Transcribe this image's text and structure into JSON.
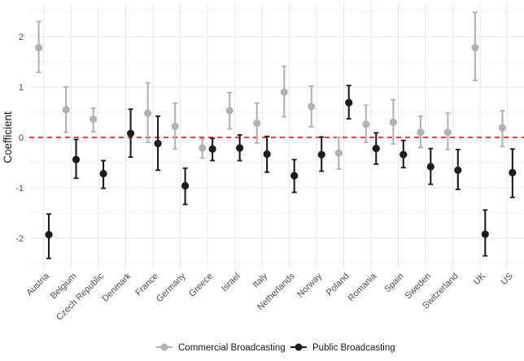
{
  "chart_data": {
    "type": "scatter",
    "subtype": "pointrange-coefficient-plot",
    "title": "",
    "xlabel": "",
    "ylabel": "Coefficient",
    "ylim": [
      -2.6,
      2.65
    ],
    "yticks": [
      -2,
      -1,
      0,
      1,
      2
    ],
    "yminor": [
      -2.5,
      -1.5,
      -0.5,
      0.5,
      1.5,
      2.5
    ],
    "grid": "on",
    "legend_position": "bottom",
    "reference_line": {
      "y": 0,
      "style": "dashed",
      "color": "#ee2222"
    },
    "categories": [
      "Austria",
      "Belgium",
      "Czech Republic",
      "Denmark",
      "France",
      "Germany",
      "Greece",
      "Israel",
      "Italy",
      "Netherlands",
      "Norway",
      "Poland",
      "Romania",
      "Spain",
      "Sweden",
      "Switzerland",
      "UK",
      "US"
    ],
    "series": [
      {
        "name": "Commercial Broadcasting",
        "color": "#b2b2b2",
        "points": [
          {
            "country": "Austria",
            "est": 1.78,
            "lo": 1.29,
            "hi": 2.3
          },
          {
            "country": "Belgium",
            "est": 0.55,
            "lo": 0.1,
            "hi": 1.0
          },
          {
            "country": "Czech Republic",
            "est": 0.36,
            "lo": 0.11,
            "hi": 0.58
          },
          {
            "country": "Denmark",
            "est": null,
            "lo": null,
            "hi": null
          },
          {
            "country": "France",
            "est": 0.48,
            "lo": -0.1,
            "hi": 1.08
          },
          {
            "country": "Germany",
            "est": 0.22,
            "lo": -0.23,
            "hi": 0.68
          },
          {
            "country": "Greece",
            "est": -0.21,
            "lo": -0.41,
            "hi": -0.03
          },
          {
            "country": "Israel",
            "est": 0.53,
            "lo": 0.17,
            "hi": 0.89
          },
          {
            "country": "Italy",
            "est": 0.28,
            "lo": -0.11,
            "hi": 0.68
          },
          {
            "country": "Netherlands",
            "est": 0.9,
            "lo": 0.41,
            "hi": 1.41
          },
          {
            "country": "Norway",
            "est": 0.61,
            "lo": 0.21,
            "hi": 1.02
          },
          {
            "country": "Poland",
            "est": -0.31,
            "lo": -0.63,
            "hi": 0.0
          },
          {
            "country": "Romania",
            "est": 0.26,
            "lo": -0.1,
            "hi": 0.64
          },
          {
            "country": "Spain",
            "est": 0.3,
            "lo": -0.13,
            "hi": 0.75
          },
          {
            "country": "Sweden",
            "est": 0.1,
            "lo": -0.2,
            "hi": 0.42
          },
          {
            "country": "Switzerland",
            "est": 0.1,
            "lo": -0.24,
            "hi": 0.48
          },
          {
            "country": "UK",
            "est": 1.78,
            "lo": 1.13,
            "hi": 2.48
          },
          {
            "country": "US",
            "est": 0.19,
            "lo": -0.18,
            "hi": 0.53
          }
        ]
      },
      {
        "name": "Public Broadcasting",
        "color": "#1c1c1c",
        "points": [
          {
            "country": "Austria",
            "est": -1.93,
            "lo": -2.4,
            "hi": -1.52
          },
          {
            "country": "Belgium",
            "est": -0.44,
            "lo": -0.81,
            "hi": -0.04
          },
          {
            "country": "Czech Republic",
            "est": -0.72,
            "lo": -1.01,
            "hi": -0.46
          },
          {
            "country": "Denmark",
            "est": 0.08,
            "lo": -0.39,
            "hi": 0.56
          },
          {
            "country": "France",
            "est": -0.12,
            "lo": -0.65,
            "hi": 0.42
          },
          {
            "country": "Germany",
            "est": -0.96,
            "lo": -1.33,
            "hi": -0.61
          },
          {
            "country": "Greece",
            "est": -0.23,
            "lo": -0.46,
            "hi": -0.02
          },
          {
            "country": "Israel",
            "est": -0.21,
            "lo": -0.46,
            "hi": 0.05
          },
          {
            "country": "Italy",
            "est": -0.33,
            "lo": -0.69,
            "hi": 0.02
          },
          {
            "country": "Netherlands",
            "est": -0.76,
            "lo": -1.09,
            "hi": -0.44
          },
          {
            "country": "Norway",
            "est": -0.34,
            "lo": -0.67,
            "hi": 0.01
          },
          {
            "country": "Poland",
            "est": 0.69,
            "lo": 0.37,
            "hi": 1.03
          },
          {
            "country": "Romania",
            "est": -0.22,
            "lo": -0.53,
            "hi": 0.09
          },
          {
            "country": "Spain",
            "est": -0.34,
            "lo": -0.6,
            "hi": -0.06
          },
          {
            "country": "Sweden",
            "est": -0.58,
            "lo": -0.93,
            "hi": -0.22
          },
          {
            "country": "Switzerland",
            "est": -0.65,
            "lo": -1.03,
            "hi": -0.24
          },
          {
            "country": "UK",
            "est": -1.92,
            "lo": -2.35,
            "hi": -1.44
          },
          {
            "country": "US",
            "est": -0.7,
            "lo": -1.19,
            "hi": -0.23
          }
        ]
      }
    ],
    "colors": {
      "background": "#ffffff",
      "major_grid": "#e7e7e7",
      "minor_grid": "#f2f2f2",
      "tick_text": "#4d4d4d",
      "axis_title_text": "#1a1a1a",
      "reference_line": "#ee2222",
      "commercial": "#b2b2b2",
      "public": "#1c1c1c"
    }
  },
  "legend": {
    "items": [
      {
        "label": "Commercial Broadcasting",
        "marker": "gray-dot-with-line"
      },
      {
        "label": "Public Broadcasting",
        "marker": "black-dot-with-line"
      }
    ]
  },
  "y_axis": {
    "title": "Coefficient"
  }
}
